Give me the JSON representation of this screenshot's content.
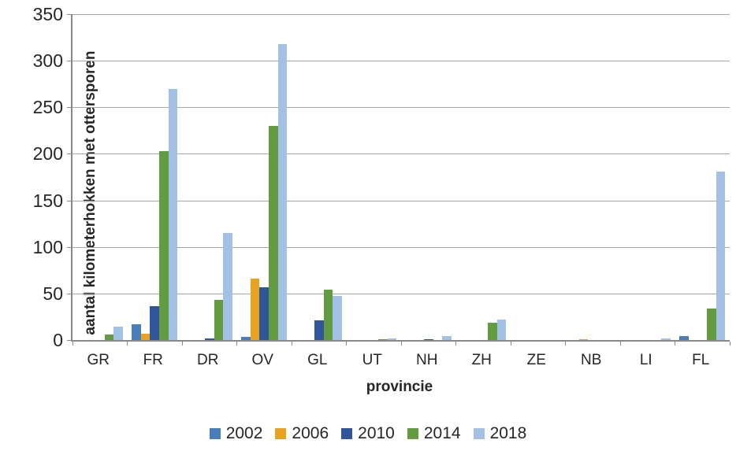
{
  "chart_data": {
    "type": "bar",
    "title": "",
    "xlabel": "provincie",
    "ylabel": "aantal kilometerhokken met ottersporen",
    "categories": [
      "GR",
      "FR",
      "DR",
      "OV",
      "GL",
      "UT",
      "NH",
      "ZH",
      "ZE",
      "NB",
      "LI",
      "FL"
    ],
    "series": [
      {
        "name": "2002",
        "color": "#4A7EBB",
        "values": [
          0,
          17,
          0,
          3,
          0,
          0,
          0,
          0,
          0,
          0,
          0,
          4
        ]
      },
      {
        "name": "2006",
        "color": "#E8A420",
        "values": [
          0,
          7,
          0,
          66,
          0,
          0,
          0,
          0,
          0,
          1,
          0,
          0
        ]
      },
      {
        "name": "2010",
        "color": "#30559B",
        "values": [
          0,
          36,
          2,
          57,
          21,
          0,
          1,
          0,
          0,
          0,
          0,
          0
        ]
      },
      {
        "name": "2014",
        "color": "#639B41",
        "values": [
          6,
          203,
          43,
          230,
          54,
          1,
          0,
          19,
          0,
          0,
          0,
          34
        ]
      },
      {
        "name": "2018",
        "color": "#A2C1E5",
        "values": [
          14,
          270,
          115,
          318,
          47,
          2,
          4,
          22,
          0,
          0,
          2,
          181
        ]
      }
    ],
    "ylim": [
      0,
      350
    ],
    "ytick_step": 50,
    "yticks": [
      "0",
      "50",
      "100",
      "150",
      "200",
      "250",
      "300",
      "350"
    ],
    "grid": true,
    "legend_position": "bottom",
    "colors": {
      "gridline": "#A6A6A6",
      "axis": "#898989",
      "text": "#262626"
    }
  }
}
